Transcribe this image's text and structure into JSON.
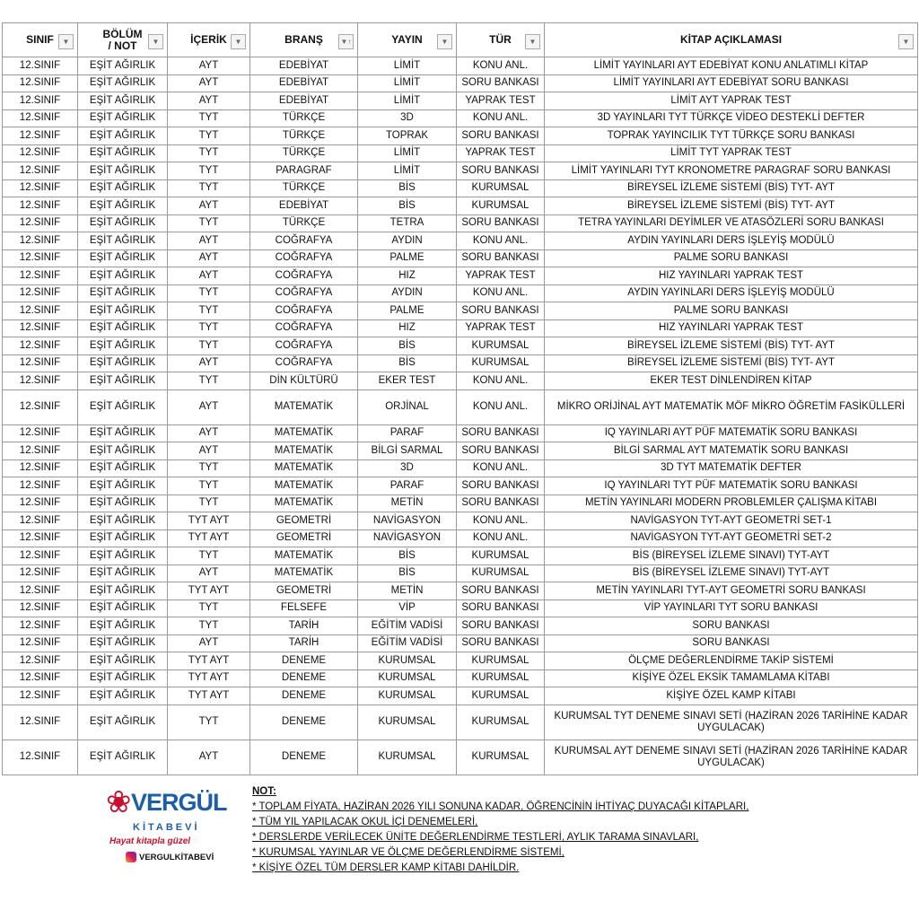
{
  "headers": [
    {
      "label": "SINIF",
      "filter": "▼"
    },
    {
      "label": "BÖLÜM / NOT",
      "filter": "▼"
    },
    {
      "label": "İÇERİK",
      "filter": "▼"
    },
    {
      "label": "BRANŞ",
      "filter": "▼↑"
    },
    {
      "label": "YAYIN",
      "filter": "▼"
    },
    {
      "label": "TÜR",
      "filter": "▼"
    },
    {
      "label": "KİTAP AÇIKLAMASI",
      "filter": "▼"
    }
  ],
  "rows": [
    [
      "12.SINIF",
      "EŞİT AĞIRLIK",
      "AYT",
      "EDEBİYAT",
      "LİMİT",
      "KONU ANL.",
      "LİMİT YAYINLARI AYT EDEBİYAT KONU ANLATIMLI KİTAP"
    ],
    [
      "12.SINIF",
      "EŞİT AĞIRLIK",
      "AYT",
      "EDEBİYAT",
      "LİMİT",
      "SORU BANKASI",
      "LİMİT YAYINLARI AYT EDEBİYAT SORU BANKASI"
    ],
    [
      "12.SINIF",
      "EŞİT AĞIRLIK",
      "AYT",
      "EDEBİYAT",
      "LİMİT",
      "YAPRAK TEST",
      "LİMİT AYT YAPRAK TEST"
    ],
    [
      "12.SINIF",
      "EŞİT AĞIRLIK",
      "TYT",
      "TÜRKÇE",
      "3D",
      "KONU ANL.",
      "3D YAYINLARI TYT TÜRKÇE VİDEO DESTEKLİ DEFTER"
    ],
    [
      "12.SINIF",
      "EŞİT AĞIRLIK",
      "TYT",
      "TÜRKÇE",
      "TOPRAK",
      "SORU BANKASI",
      "TOPRAK YAYINCILIK TYT TÜRKÇE SORU BANKASI"
    ],
    [
      "12.SINIF",
      "EŞİT AĞIRLIK",
      "TYT",
      "TÜRKÇE",
      "LİMİT",
      "YAPRAK TEST",
      "LİMİT TYT YAPRAK TEST"
    ],
    [
      "12.SINIF",
      "EŞİT AĞIRLIK",
      "TYT",
      "PARAGRAF",
      "LİMİT",
      "SORU BANKASI",
      "LİMİT YAYINLARI TYT KRONOMETRE PARAGRAF SORU BANKASI"
    ],
    [
      "12.SINIF",
      "EŞİT AĞIRLIK",
      "TYT",
      "TÜRKÇE",
      "BİS",
      "KURUMSAL",
      "BİREYSEL İZLEME SİSTEMİ (BİS) TYT- AYT"
    ],
    [
      "12.SINIF",
      "EŞİT AĞIRLIK",
      "AYT",
      "EDEBİYAT",
      "BİS",
      "KURUMSAL",
      "BİREYSEL İZLEME SİSTEMİ (BİS) TYT- AYT"
    ],
    [
      "12.SINIF",
      "EŞİT AĞIRLIK",
      "TYT",
      "TÜRKÇE",
      "TETRA",
      "SORU BANKASI",
      "TETRA YAYINLARI DEYİMLER VE ATASÖZLERİ SORU BANKASI"
    ],
    [
      "12.SINIF",
      "EŞİT AĞIRLIK",
      "AYT",
      "COĞRAFYA",
      "AYDIN",
      "KONU ANL.",
      "AYDIN YAYINLARI DERS İŞLEYİŞ MODÜLÜ"
    ],
    [
      "12.SINIF",
      "EŞİT AĞIRLIK",
      "AYT",
      "COĞRAFYA",
      "PALME",
      "SORU BANKASI",
      "PALME SORU BANKASI"
    ],
    [
      "12.SINIF",
      "EŞİT AĞIRLIK",
      "AYT",
      "COĞRAFYA",
      "HIZ",
      "YAPRAK TEST",
      "HIZ YAYINLARI YAPRAK TEST"
    ],
    [
      "12.SINIF",
      "EŞİT AĞIRLIK",
      "TYT",
      "COĞRAFYA",
      "AYDIN",
      "KONU ANL.",
      "AYDIN YAYINLARI DERS İŞLEYİŞ MODÜLÜ"
    ],
    [
      "12.SINIF",
      "EŞİT AĞIRLIK",
      "TYT",
      "COĞRAFYA",
      "PALME",
      "SORU BANKASI",
      "PALME SORU BANKASI"
    ],
    [
      "12.SINIF",
      "EŞİT AĞIRLIK",
      "TYT",
      "COĞRAFYA",
      "HIZ",
      "YAPRAK TEST",
      "HIZ YAYINLARI YAPRAK TEST"
    ],
    [
      "12.SINIF",
      "EŞİT AĞIRLIK",
      "TYT",
      "COĞRAFYA",
      "BİS",
      "KURUMSAL",
      "BİREYSEL İZLEME SİSTEMİ (BİS) TYT- AYT"
    ],
    [
      "12.SINIF",
      "EŞİT AĞIRLIK",
      "AYT",
      "COĞRAFYA",
      "BİS",
      "KURUMSAL",
      "BİREYSEL İZLEME SİSTEMİ (BİS) TYT- AYT"
    ],
    [
      "12.SINIF",
      "EŞİT AĞIRLIK",
      "TYT",
      "DİN KÜLTÜRÜ",
      "EKER TEST",
      "KONU ANL.",
      "EKER TEST DİNLENDİREN KİTAP"
    ],
    [
      "12.SINIF",
      "EŞİT AĞIRLIK",
      "AYT",
      "MATEMATİK",
      "ORJİNAL",
      "KONU ANL.",
      "MİKRO ORİJİNAL AYT MATEMATİK MÖF MİKRO ÖĞRETİM FASİKÜLLERİ"
    ],
    [
      "12.SINIF",
      "EŞİT AĞIRLIK",
      "AYT",
      "MATEMATİK",
      "PARAF",
      "SORU BANKASI",
      "IQ YAYINLARI AYT PÜF MATEMATİK SORU BANKASI"
    ],
    [
      "12.SINIF",
      "EŞİT AĞIRLIK",
      "AYT",
      "MATEMATİK",
      "BİLGİ SARMAL",
      "SORU BANKASI",
      "BİLGİ SARMAL AYT MATEMATİK SORU BANKASI"
    ],
    [
      "12.SINIF",
      "EŞİT AĞIRLIK",
      "TYT",
      "MATEMATİK",
      "3D",
      "KONU ANL.",
      "3D TYT MATEMATİK DEFTER"
    ],
    [
      "12.SINIF",
      "EŞİT AĞIRLIK",
      "TYT",
      "MATEMATİK",
      "PARAF",
      "SORU BANKASI",
      "IQ YAYINLARI TYT PÜF MATEMATİK SORU BANKASI"
    ],
    [
      "12.SINIF",
      "EŞİT AĞIRLIK",
      "TYT",
      "MATEMATİK",
      "METİN",
      "SORU BANKASI",
      "METİN YAYINLARI MODERN PROBLEMLER ÇALIŞMA KİTABI"
    ],
    [
      "12.SINIF",
      "EŞİT AĞIRLIK",
      "TYT AYT",
      "GEOMETRİ",
      "NAVİGASYON",
      "KONU ANL.",
      "NAVİGASYON TYT-AYT GEOMETRİ SET-1"
    ],
    [
      "12.SINIF",
      "EŞİT AĞIRLIK",
      "TYT AYT",
      "GEOMETRİ",
      "NAVİGASYON",
      "KONU ANL.",
      "NAVİGASYON TYT-AYT GEOMETRİ SET-2"
    ],
    [
      "12.SINIF",
      "EŞİT AĞIRLIK",
      "TYT",
      "MATEMATİK",
      "BİS",
      "KURUMSAL",
      "BİS (BİREYSEL İZLEME SINAVI) TYT-AYT"
    ],
    [
      "12.SINIF",
      "EŞİT AĞIRLIK",
      "AYT",
      "MATEMATİK",
      "BİS",
      "KURUMSAL",
      "BİS (BİREYSEL İZLEME SINAVI) TYT-AYT"
    ],
    [
      "12.SINIF",
      "EŞİT AĞIRLIK",
      "TYT AYT",
      "GEOMETRİ",
      "METİN",
      "SORU BANKASI",
      "METİN YAYINLARI TYT-AYT GEOMETRİ SORU BANKASI"
    ],
    [
      "12.SINIF",
      "EŞİT AĞIRLIK",
      "TYT",
      "FELSEFE",
      "VİP",
      "SORU BANKASI",
      "VİP YAYINLARI TYT SORU BANKASI"
    ],
    [
      "12.SINIF",
      "EŞİT AĞIRLIK",
      "TYT",
      "TARİH",
      "EĞİTİM VADİSİ",
      "SORU BANKASI",
      "SORU BANKASI"
    ],
    [
      "12.SINIF",
      "EŞİT AĞIRLIK",
      "AYT",
      "TARİH",
      "EĞİTİM VADİSİ",
      "SORU BANKASI",
      "SORU BANKASI"
    ],
    [
      "12.SINIF",
      "EŞİT AĞIRLIK",
      "TYT AYT",
      "DENEME",
      "KURUMSAL",
      "KURUMSAL",
      "ÖLÇME DEĞERLENDİRME TAKİP SİSTEMİ"
    ],
    [
      "12.SINIF",
      "EŞİT AĞIRLIK",
      "TYT AYT",
      "DENEME",
      "KURUMSAL",
      "KURUMSAL",
      "KİŞİYE ÖZEL EKSİK TAMAMLAMA KİTABI"
    ],
    [
      "12.SINIF",
      "EŞİT AĞIRLIK",
      "TYT AYT",
      "DENEME",
      "KURUMSAL",
      "KURUMSAL",
      "KİŞİYE ÖZEL KAMP KİTABI"
    ],
    [
      "12.SINIF",
      "EŞİT AĞIRLIK",
      "TYT",
      "DENEME",
      "KURUMSAL",
      "KURUMSAL",
      "KURUMSAL TYT DENEME SINAVI SETİ (HAZİRAN 2026 TARİHİNE KADAR UYGULACAK)"
    ],
    [
      "12.SINIF",
      "EŞİT AĞIRLIK",
      "AYT",
      "DENEME",
      "KURUMSAL",
      "KURUMSAL",
      "KURUMSAL AYT DENEME SINAVI SETİ (HAZİRAN 2026 TARİHİNE KADAR UYGULACAK)"
    ]
  ],
  "double_rows": [
    19,
    36,
    37
  ],
  "logo": {
    "name": "VERGÜL",
    "sub": "KİTABEVİ",
    "slogan": "Hayat kitapla güzel",
    "instagram": "VERGULKİTABEVİ",
    "color": "#1d5ea8",
    "accent": "#c8102e"
  },
  "notes": {
    "title": "NOT:",
    "items": [
      "*  TOPLAM FİYATA, HAZİRAN 2026 YILI SONUNA KADAR, ÖĞRENCİNİN İHTİYAÇ DUYACAĞI KİTAPLARI,",
      "*  TÜM YIL YAPILACAK OKUL İÇİ DENEMELERİ,",
      "*  DERSLERDE VERİLECEK ÜNİTE DEĞERLENDİRME TESTLERİ, AYLIK TARAMA SINAVLARI,",
      "*  KURUMSAL YAYINLAR VE ÖLÇME DEĞERLENDİRME SİSTEMİ,",
      "*  KİŞİYE ÖZEL TÜM DERSLER KAMP KİTABI DAHİLDİR."
    ]
  }
}
